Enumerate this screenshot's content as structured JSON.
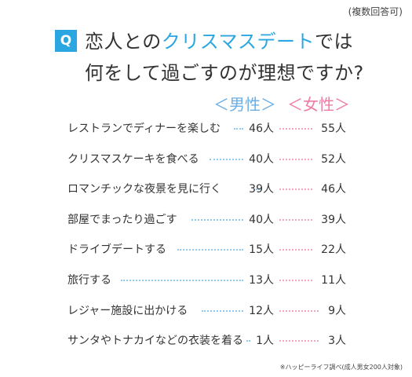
{
  "note": "(複数回答可)",
  "question_mark": "Q",
  "title": {
    "line1_a": "恋人との",
    "line1_b": "クリスマスデート",
    "line1_c": "では",
    "line2": "何をして過ごすのが理想ですか?"
  },
  "accent_color": "#2aa6e0",
  "chart_data": {
    "type": "table",
    "unit": "人",
    "series": [
      {
        "name": "＜男性＞",
        "color": "#6aaee6",
        "values": [
          46,
          40,
          39,
          40,
          15,
          13,
          12,
          1
        ]
      },
      {
        "name": "＜女性＞",
        "color": "#ef7aa6",
        "values": [
          55,
          52,
          46,
          39,
          22,
          11,
          9,
          3
        ]
      }
    ],
    "categories": [
      "レストランでディナーを楽しむ",
      "クリスマスケーキを食べる",
      "ロマンチックな夜景を見に行く",
      "部屋でまったり過ごす",
      "ドライブデートする",
      "旅行する",
      "レジャー施設に出かける",
      "サンタやトナカイなどの衣装を着る"
    ],
    "male_labels": [
      "46人",
      "40人",
      "39人",
      "40人",
      "15人",
      "13人",
      "12人",
      "1人"
    ],
    "female_labels": [
      "55人",
      "52人",
      "46人",
      "39人",
      "22人",
      "11人",
      "9人",
      "3人"
    ]
  },
  "source": "※ハッピーライフ調べ(成人男女200人対象)"
}
